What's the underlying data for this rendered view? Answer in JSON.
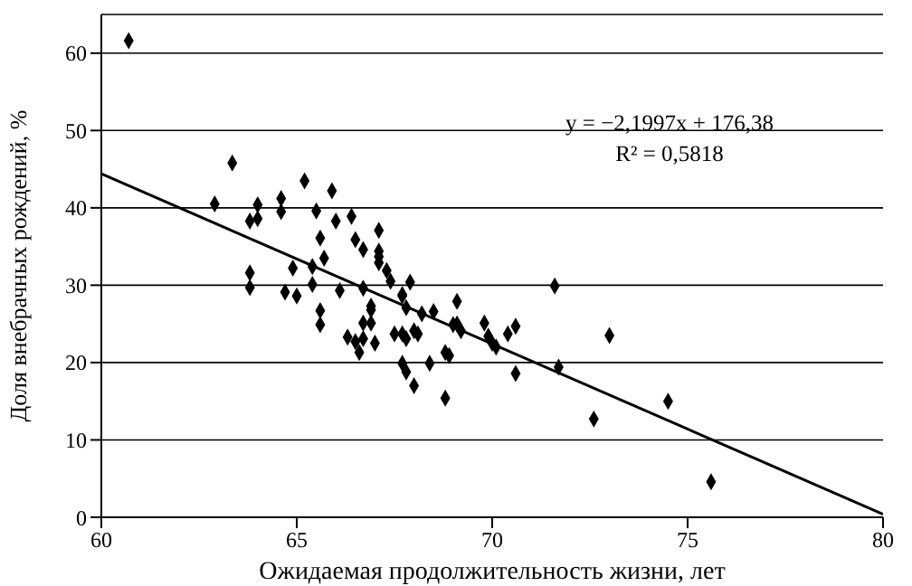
{
  "chart_data": {
    "type": "scatter",
    "xlabel": "Ожидаемая продолжительность жизни, лет",
    "ylabel": "Доля внебрачных рождений, %",
    "xlim": [
      60,
      80
    ],
    "xticks": [
      60,
      65,
      70,
      75,
      80
    ],
    "ylim": [
      0,
      65
    ],
    "yticks": [
      0,
      10,
      20,
      30,
      40,
      50,
      60
    ],
    "grid": "y",
    "marker": "diamond",
    "annotations": [
      "y = −2,1997x + 176,38",
      "R² = 0,5818"
    ],
    "series": [
      {
        "color": "#000000",
        "x": [
          60.7,
          63.35,
          62.9,
          64.0,
          63.8,
          64.0,
          64.6,
          64.6,
          65.2,
          65.5,
          65.9,
          66.0,
          66.4,
          65.6,
          66.5,
          65.7,
          66.7,
          67.1,
          67.1,
          67.1,
          67.1,
          67.3,
          67.4,
          67.9,
          63.8,
          63.8,
          64.9,
          65.4,
          65.4,
          64.7,
          65.0,
          66.1,
          66.7,
          67.7,
          65.6,
          65.6,
          66.3,
          66.5,
          66.6,
          66.7,
          66.7,
          66.9,
          66.9,
          66.9,
          67.0,
          67.5,
          67.7,
          67.7,
          67.8,
          67.7,
          67.8,
          68.0,
          67.8,
          68.0,
          68.1,
          68.2,
          68.4,
          68.5,
          68.8,
          68.9,
          68.8,
          69.1,
          69.1,
          69.2,
          69.8,
          69.9,
          70.0,
          69.0,
          70.1,
          70.4,
          70.6,
          70.6,
          71.6,
          71.7,
          73.0,
          72.6,
          74.5,
          75.6
        ],
        "values": [
          61.6,
          45.8,
          40.5,
          40.4,
          38.3,
          38.6,
          41.2,
          39.5,
          43.5,
          39.6,
          42.2,
          38.3,
          38.9,
          36.1,
          35.9,
          33.5,
          34.6,
          37.1,
          34.4,
          33.7,
          32.9,
          31.9,
          30.5,
          30.4,
          31.6,
          29.7,
          32.2,
          32.4,
          30.1,
          29.1,
          28.6,
          29.3,
          29.6,
          28.8,
          26.7,
          24.9,
          23.3,
          22.7,
          21.3,
          23.1,
          25.1,
          26.8,
          27.3,
          25.1,
          22.5,
          23.7,
          23.7,
          28.6,
          27.1,
          19.9,
          18.8,
          17.0,
          23.1,
          24.1,
          23.7,
          26.3,
          19.9,
          26.6,
          21.3,
          20.9,
          15.4,
          27.9,
          25.0,
          24.1,
          25.1,
          23.4,
          22.5,
          24.9,
          22.0,
          23.7,
          24.7,
          18.6,
          29.9,
          19.4,
          23.5,
          12.7,
          15.0,
          4.6
        ]
      },
      {
        "type": "line",
        "color": "#000000",
        "marker": "none",
        "x": [
          60,
          80
        ],
        "values": [
          44.4,
          0.4
        ]
      }
    ]
  }
}
